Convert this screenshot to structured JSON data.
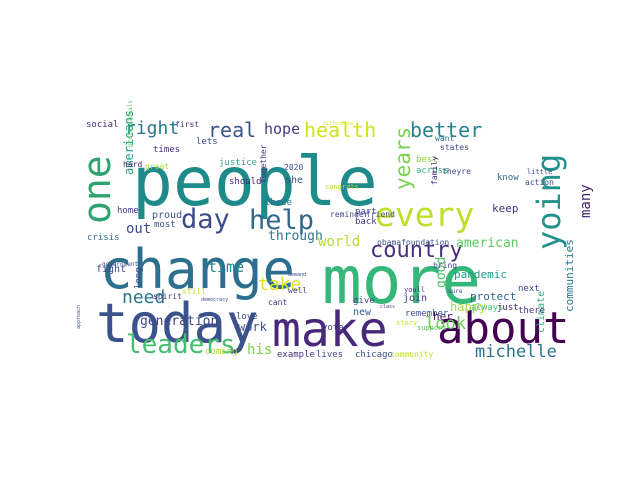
{
  "wordcloud": {
    "words": [
      {
        "text": "people",
        "color": "#1f8a8a"
      },
      {
        "text": "change",
        "color": "#2c6f8e"
      },
      {
        "text": "more",
        "color": "#35b779"
      },
      {
        "text": "today",
        "color": "#3b528b"
      },
      {
        "text": "make",
        "color": "#482878"
      },
      {
        "text": "about",
        "color": "#440154"
      },
      {
        "text": "one",
        "color": "#2ea36f"
      },
      {
        "text": "every",
        "color": "#bddf26"
      },
      {
        "text": "yoing",
        "color": "#21918c"
      },
      {
        "text": "day",
        "color": "#3e4a89"
      },
      {
        "text": "help",
        "color": "#31688e"
      },
      {
        "text": "leaders",
        "color": "#44bf70"
      },
      {
        "text": "country",
        "color": "#472f7d"
      },
      {
        "text": "health",
        "color": "#d2e21b"
      },
      {
        "text": "better",
        "color": "#26828e"
      },
      {
        "text": "years",
        "color": "#7ad151"
      },
      {
        "text": "real",
        "color": "#3b528b"
      },
      {
        "text": "hope",
        "color": "#443a83"
      },
      {
        "text": "right",
        "color": "#2a788e"
      },
      {
        "text": "michelle",
        "color": "#2c728e"
      },
      {
        "text": "look",
        "color": "#6ece58"
      },
      {
        "text": "take",
        "color": "#dde318"
      },
      {
        "text": "need",
        "color": "#2a768e"
      },
      {
        "text": "world",
        "color": "#b5de2b"
      },
      {
        "text": "time",
        "color": "#25848e"
      },
      {
        "text": "out",
        "color": "#3e4c8a"
      },
      {
        "text": "his",
        "color": "#7ad151"
      },
      {
        "text": "many",
        "color": "#482071"
      },
      {
        "text": "good",
        "color": "#4ac16d"
      },
      {
        "text": "through",
        "color": "#2a788e"
      },
      {
        "text": "generation",
        "color": "#3f4788"
      },
      {
        "text": "american",
        "color": "#5ec962"
      },
      {
        "text": "work",
        "color": "#3b528b"
      },
      {
        "text": "americans",
        "color": "#20a386"
      },
      {
        "text": "communities",
        "color": "#29798e"
      },
      {
        "text": "pandemic",
        "color": "#1fa088"
      },
      {
        "text": "happy",
        "color": "#a0da39"
      },
      {
        "text": "her",
        "color": "#481467"
      },
      {
        "text": "protect",
        "color": "#31688e"
      },
      {
        "text": "join",
        "color": "#414487"
      },
      {
        "text": "keep",
        "color": "#46337e"
      },
      {
        "text": "climate",
        "color": "#2db27d"
      },
      {
        "text": "fight",
        "color": "#3e4989"
      },
      {
        "text": "social",
        "color": "#472d7b"
      },
      {
        "text": "crisis",
        "color": "#2e6e8e"
      },
      {
        "text": "home",
        "color": "#443983"
      },
      {
        "text": "proud",
        "color": "#3b528b"
      },
      {
        "text": "most",
        "color": "#3e4a89"
      },
      {
        "text": "should",
        "color": "#482374"
      },
      {
        "text": "times",
        "color": "#46307e"
      },
      {
        "text": "lets",
        "color": "#3f4889"
      },
      {
        "text": "justice",
        "color": "#29af7f"
      },
      {
        "text": "these",
        "color": "#2c728e"
      },
      {
        "text": "she",
        "color": "#3b528b"
      },
      {
        "text": "part",
        "color": "#3e4c8a"
      },
      {
        "text": "back",
        "color": "#453882"
      },
      {
        "text": "across",
        "color": "#31b57b"
      },
      {
        "text": "best",
        "color": "#8fd744"
      },
      {
        "text": "know",
        "color": "#2d708e"
      },
      {
        "text": "remember",
        "color": "#3b528b"
      },
      {
        "text": "always",
        "color": "#50c46a"
      },
      {
        "text": "next",
        "color": "#3e4989"
      },
      {
        "text": "just",
        "color": "#482878"
      },
      {
        "text": "there",
        "color": "#443a83"
      },
      {
        "text": "new",
        "color": "#35608d"
      },
      {
        "text": "give",
        "color": "#3e4a89"
      },
      {
        "text": "vote",
        "color": "#414487"
      },
      {
        "text": "love",
        "color": "#404688"
      },
      {
        "text": "coming",
        "color": "#a8db34"
      },
      {
        "text": "example",
        "color": "#46327e"
      },
      {
        "text": "lives",
        "color": "#3e4c8a"
      },
      {
        "text": "chicago",
        "color": "#3b528b"
      },
      {
        "text": "community",
        "color": "#bddf26"
      },
      {
        "text": "states",
        "color": "#3f4889"
      },
      {
        "text": "family",
        "color": "#46337e"
      },
      {
        "text": "want",
        "color": "#2a788e"
      },
      {
        "text": "theyre",
        "color": "#3e4a89"
      },
      {
        "text": "first",
        "color": "#443a83"
      },
      {
        "text": "hard",
        "color": "#482475"
      },
      {
        "text": "2020",
        "color": "#3b528b"
      },
      {
        "text": "together",
        "color": "#46307e"
      },
      {
        "text": "reminder",
        "color": "#3f4889"
      },
      {
        "text": "friend",
        "color": "#3e4a89"
      },
      {
        "text": "obamafoundation",
        "color": "#3b528b"
      },
      {
        "text": "youll",
        "color": "#443a83"
      },
      {
        "text": "support",
        "color": "#5ec962"
      },
      {
        "text": "story",
        "color": "#c8e020"
      },
      {
        "text": "well",
        "color": "#3e4a89"
      },
      {
        "text": "bring",
        "color": "#3f4889"
      },
      {
        "text": "little",
        "color": "#3b528b"
      },
      {
        "text": "great",
        "color": "#9fda3a"
      },
      {
        "text": "spirit",
        "color": "#46337e"
      },
      {
        "text": "long",
        "color": "#3e4a89"
      },
      {
        "text": "cant",
        "color": "#443a83"
      },
      {
        "text": "still",
        "color": "#c0df25"
      },
      {
        "text": "action",
        "color": "#3e4989"
      },
      {
        "text": "congrats",
        "color": "#b0dd2f"
      },
      {
        "text": "government",
        "color": "#3e4a89"
      },
      {
        "text": "professionals",
        "color": "#5cc863"
      },
      {
        "text": "approach",
        "color": "#3b528b"
      },
      {
        "text": "difference",
        "color": "#d8e219"
      },
      {
        "text": "democracy",
        "color": "#3e4a89"
      },
      {
        "text": "demand",
        "color": "#3e4989"
      },
      {
        "text": "class",
        "color": "#3f4889"
      },
      {
        "text": "sure",
        "color": "#3e4a89"
      }
    ]
  }
}
